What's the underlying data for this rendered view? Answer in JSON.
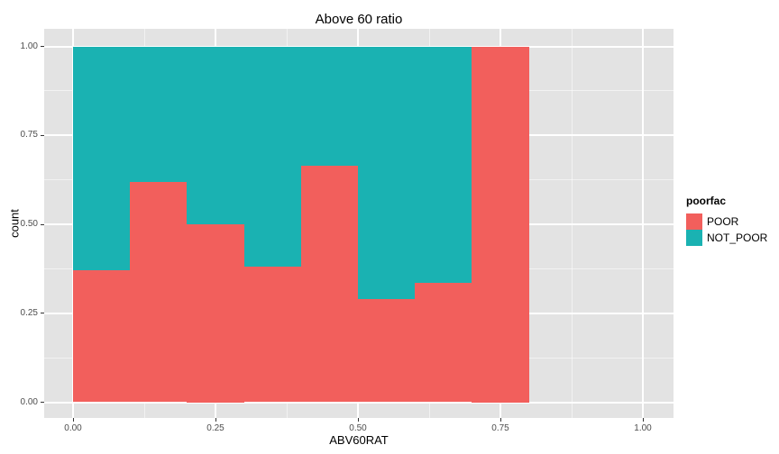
{
  "chart_data": {
    "type": "bar",
    "subtype": "stacked-filled-histogram",
    "title": "Above 60 ratio",
    "xlabel": "ABV60RAT",
    "ylabel": "count",
    "x_tick_labels": [
      "0.00",
      "0.25",
      "0.50",
      "0.75",
      "1.00"
    ],
    "x_tick_values": [
      0,
      0.25,
      0.5,
      0.75,
      1.0
    ],
    "y_tick_labels": [
      "0.00",
      "0.25",
      "0.50",
      "0.75",
      "1.00"
    ],
    "y_tick_values": [
      0,
      0.25,
      0.5,
      0.75,
      1.0
    ],
    "x_minor_gridlines": [
      0.125,
      0.375,
      0.625,
      0.875
    ],
    "y_minor_gridlines": [
      0.125,
      0.375,
      0.625,
      0.875
    ],
    "xlim": [
      -0.05,
      1.05
    ],
    "ylim": [
      -0.05,
      1.05
    ],
    "grid": true,
    "bin_start": 0.0,
    "bin_width": 0.1,
    "bin_count": 8,
    "series": [
      {
        "name": "POOR",
        "color": "#F25F5C",
        "values": [
          0.37,
          0.62,
          0.5,
          0.38,
          0.665,
          0.29,
          0.335,
          1.0
        ]
      },
      {
        "name": "NOT_POOR",
        "color": "#1AB2B2",
        "values": [
          0.63,
          0.38,
          0.5,
          0.62,
          0.335,
          0.71,
          0.665,
          0.0
        ]
      }
    ],
    "legend": {
      "position": "right",
      "title": "poorfac",
      "entries": [
        {
          "label": "POOR",
          "color": "#F25F5C"
        },
        {
          "label": "NOT_POOR",
          "color": "#1AB2B2"
        }
      ]
    },
    "colors": {
      "panel_background": "#E3E3E3",
      "gridline": "#FFFFFF",
      "tick_text": "#4d4d4d",
      "tick_mark": "#333333",
      "text": "#000000",
      "figure_background": "#FFFFFF"
    }
  }
}
